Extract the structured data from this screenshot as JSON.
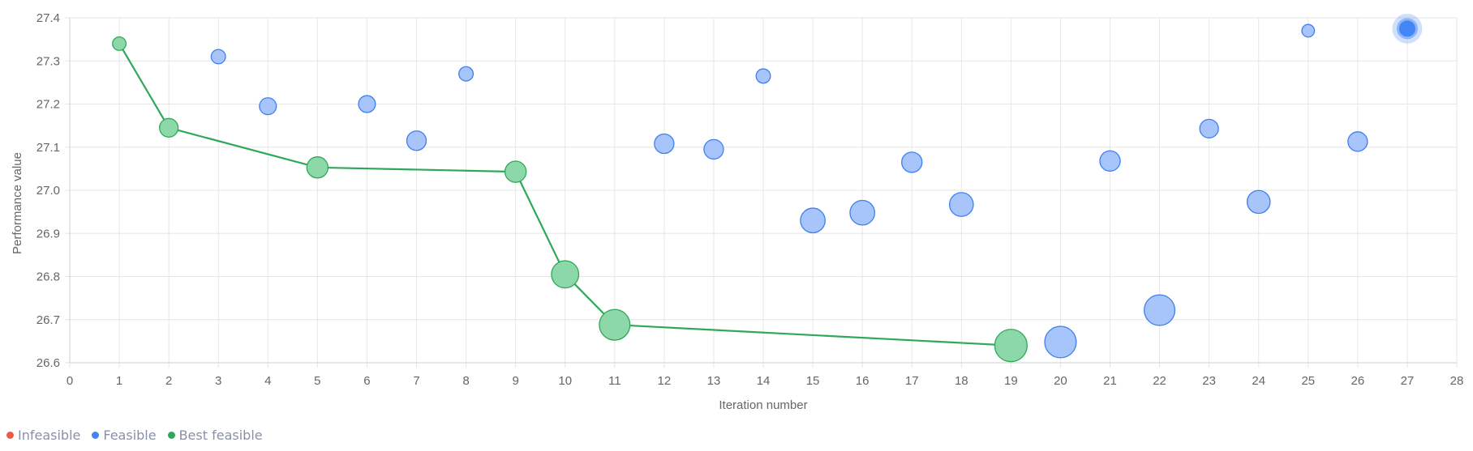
{
  "chart_data": {
    "type": "scatter",
    "xlabel": "Iteration number",
    "ylabel": "Performance value",
    "xlim": [
      0,
      28
    ],
    "ylim": [
      26.6,
      27.4
    ],
    "x_ticks": [
      "0",
      "1",
      "2",
      "3",
      "4",
      "5",
      "6",
      "7",
      "8",
      "9",
      "10",
      "11",
      "12",
      "13",
      "14",
      "15",
      "16",
      "17",
      "18",
      "19",
      "20",
      "21",
      "22",
      "23",
      "24",
      "25",
      "26",
      "27",
      "28"
    ],
    "y_ticks": [
      "26.6",
      "26.7",
      "26.8",
      "26.9",
      "27.0",
      "27.1",
      "27.2",
      "27.3",
      "27.4"
    ],
    "grid": true,
    "legend_position": "bottom-left",
    "series": [
      {
        "name": "Infeasible",
        "color": "#ef5a45",
        "points": []
      },
      {
        "name": "Feasible",
        "color": "#4285f4",
        "points": [
          {
            "x": 3,
            "y": 27.31,
            "size": 1.1
          },
          {
            "x": 4,
            "y": 27.195,
            "size": 1.4
          },
          {
            "x": 6,
            "y": 27.2,
            "size": 1.4
          },
          {
            "x": 7,
            "y": 27.115,
            "size": 1.7
          },
          {
            "x": 8,
            "y": 27.27,
            "size": 1.1
          },
          {
            "x": 12,
            "y": 27.108,
            "size": 1.7
          },
          {
            "x": 13,
            "y": 27.095,
            "size": 1.7
          },
          {
            "x": 14,
            "y": 27.265,
            "size": 1.1
          },
          {
            "x": 15,
            "y": 26.93,
            "size": 2.3
          },
          {
            "x": 16,
            "y": 26.948,
            "size": 2.3
          },
          {
            "x": 17,
            "y": 27.065,
            "size": 1.8
          },
          {
            "x": 18,
            "y": 26.967,
            "size": 2.2
          },
          {
            "x": 20,
            "y": 26.648,
            "size": 3.1
          },
          {
            "x": 21,
            "y": 27.068,
            "size": 1.8
          },
          {
            "x": 22,
            "y": 26.722,
            "size": 3.0
          },
          {
            "x": 23,
            "y": 27.143,
            "size": 1.6
          },
          {
            "x": 24,
            "y": 26.973,
            "size": 2.1
          },
          {
            "x": 25,
            "y": 27.37,
            "size": 0.9
          },
          {
            "x": 26,
            "y": 27.113,
            "size": 1.7
          },
          {
            "x": 27,
            "y": 27.375,
            "size": 1.6,
            "highlighted": true
          }
        ]
      },
      {
        "name": "Best feasible",
        "color": "#2fa85a",
        "points": [
          {
            "x": 1,
            "y": 27.34,
            "size": 1.0
          },
          {
            "x": 2,
            "y": 27.145,
            "size": 1.6
          },
          {
            "x": 5,
            "y": 27.053,
            "size": 1.9
          },
          {
            "x": 9,
            "y": 27.043,
            "size": 1.9
          },
          {
            "x": 10,
            "y": 26.805,
            "size": 2.6
          },
          {
            "x": 11,
            "y": 26.688,
            "size": 3.0
          },
          {
            "x": 19,
            "y": 26.64,
            "size": 3.2
          }
        ]
      }
    ]
  }
}
